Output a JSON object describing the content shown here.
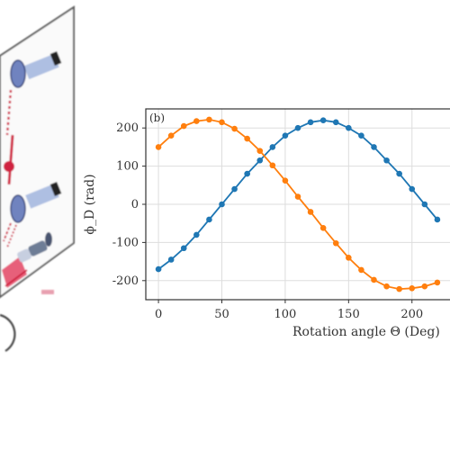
{
  "chart_data": {
    "type": "line",
    "panel_label": "(b)",
    "xlabel": "Rotation angle Θ (Deg)",
    "ylabel": "ϕ_D (rad)",
    "x_ticks": [
      0,
      50,
      100,
      150,
      200
    ],
    "y_ticks": [
      200,
      100,
      0,
      -100,
      -200
    ],
    "xlim": [
      -10,
      230
    ],
    "ylim": [
      -250,
      250
    ],
    "grid": true,
    "series": [
      {
        "color": "#1f77b4",
        "x": [
          0,
          10,
          20,
          30,
          40,
          50,
          60,
          70,
          80,
          90,
          100,
          110,
          120,
          130,
          140,
          150,
          160,
          170,
          180,
          190,
          200,
          210,
          220
        ],
        "y": [
          -170,
          -145,
          -115,
          -80,
          -40,
          0,
          40,
          80,
          115,
          150,
          180,
          200,
          215,
          220,
          215,
          200,
          180,
          150,
          115,
          80,
          40,
          0,
          -40
        ]
      },
      {
        "color": "#ff7f0e",
        "x": [
          0,
          10,
          20,
          30,
          40,
          50,
          60,
          70,
          80,
          90,
          100,
          110,
          120,
          130,
          140,
          150,
          160,
          170,
          180,
          190,
          200,
          210,
          220
        ],
        "y": [
          150,
          180,
          205,
          218,
          222,
          215,
          198,
          172,
          140,
          102,
          62,
          20,
          -20,
          -62,
          -102,
          -140,
          -172,
          -198,
          -215,
          -222,
          -220,
          -215,
          -205
        ]
      }
    ]
  },
  "diagram": {
    "colors": {
      "frame": "#555555",
      "lens": "#7b90c8",
      "beam": "#d02040",
      "tube": "#a8bde0"
    },
    "icons": [
      "objective-lens-icon",
      "objective-lens-icon",
      "laser-beam-icon",
      "laser-source-icon"
    ]
  }
}
